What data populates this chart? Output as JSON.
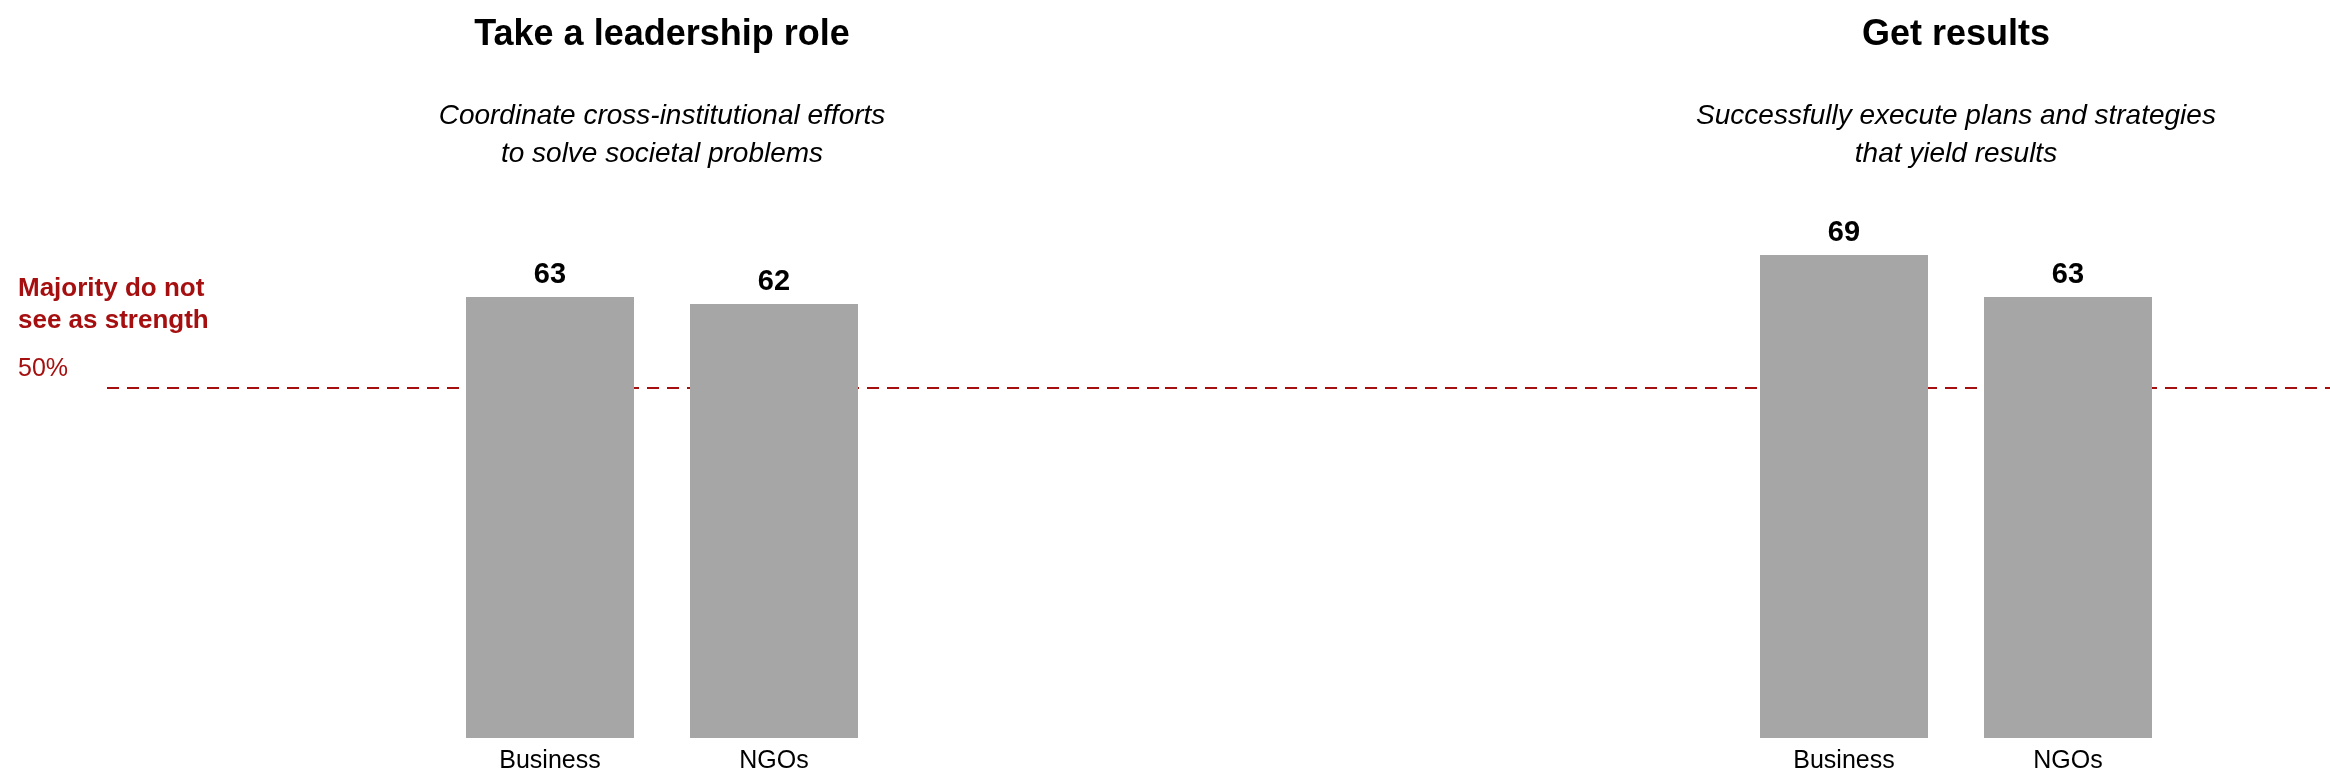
{
  "chart_data": [
    {
      "type": "bar",
      "title": "Take a leadership role",
      "subtitle": "Coordinate cross-institutional efforts\nto solve societal problems",
      "categories": [
        "Business",
        "NGOs"
      ],
      "values": [
        63,
        62
      ],
      "color": "#a6a6a6",
      "data_labels": true,
      "ref_lines": [
        {
          "axis": "y",
          "value": 50,
          "label": "50%",
          "color": "#a50f0f",
          "line_style": "dashed"
        }
      ],
      "annotations": [
        "Majority do not\nsee as strength"
      ]
    },
    {
      "type": "bar",
      "title": "Get results",
      "subtitle": "Successfully execute plans and strategies\nthat yield results",
      "categories": [
        "Business",
        "NGOs"
      ],
      "values": [
        69,
        63
      ],
      "color": "#a6a6a6",
      "data_labels": true,
      "ref_lines": [
        {
          "axis": "y",
          "value": 50,
          "label": null,
          "color": "#a50f0f",
          "line_style": "dashed"
        }
      ]
    }
  ]
}
